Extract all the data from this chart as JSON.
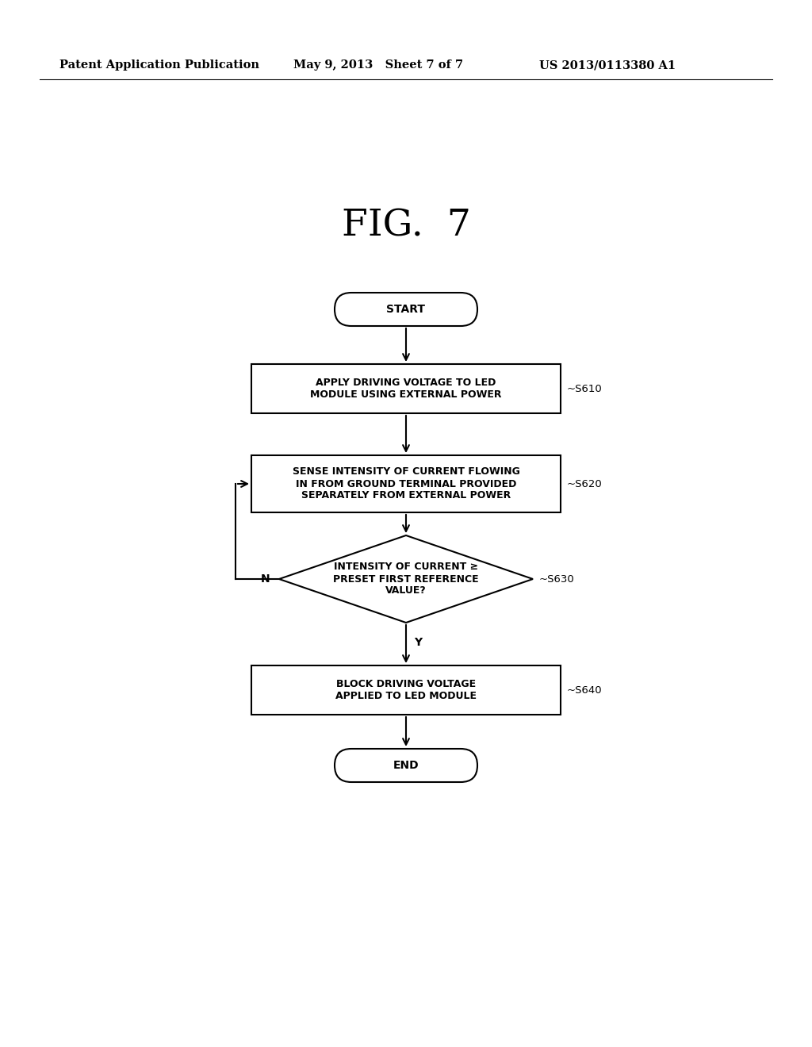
{
  "bg_color": "#ffffff",
  "header_left": "Patent Application Publication",
  "header_mid": "May 9, 2013   Sheet 7 of 7",
  "header_right": "US 2013/0113380 A1",
  "fig_title": "FIG.  7",
  "font_size_header": 10.5,
  "font_size_title": 34,
  "font_size_node": 9,
  "font_size_tag": 9.5,
  "font_size_label": 10
}
